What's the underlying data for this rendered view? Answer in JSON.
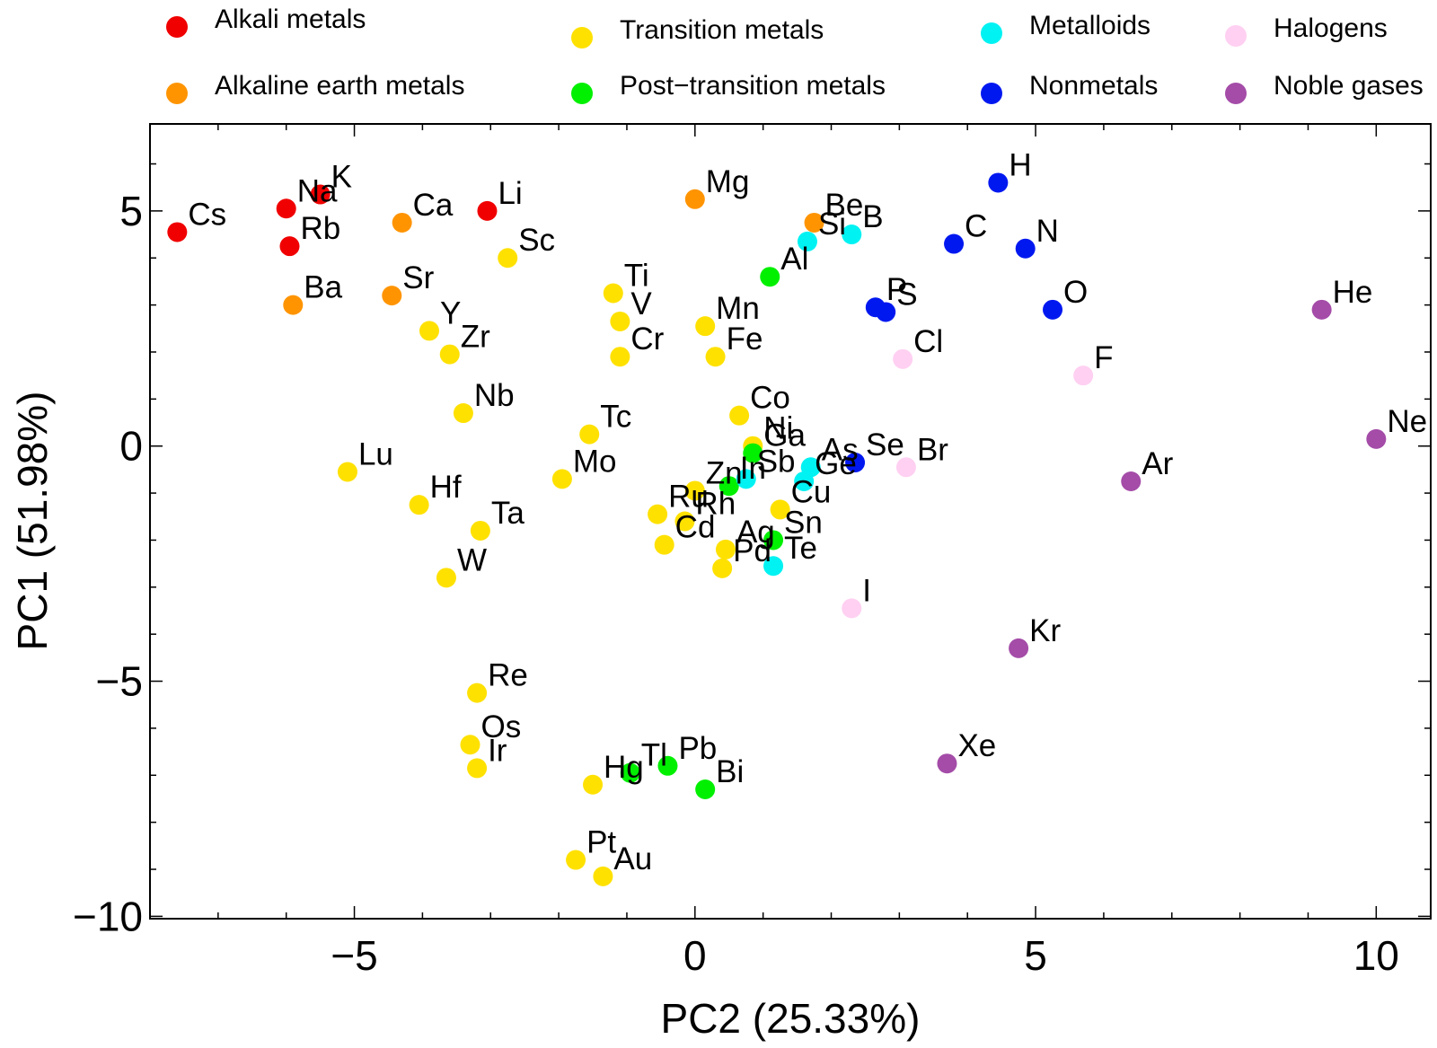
{
  "chart_data": {
    "type": "scatter",
    "xlabel": "PC2 (25.33%)",
    "ylabel": "PC1 (51.98%)",
    "xlim": [
      -8,
      10.8
    ],
    "ylim": [
      -10.05,
      6.85
    ],
    "xticks": [
      -5,
      0,
      5,
      10
    ],
    "yticks": [
      -10,
      -5,
      0,
      5
    ],
    "xtick_labels": [
      "−5",
      "0",
      "5",
      "10"
    ],
    "ytick_labels": [
      "−10",
      "−5",
      "0",
      "5"
    ],
    "grid": false,
    "legend_position": "top",
    "series": [
      {
        "name": "Alkali metals",
        "color": "#f00000",
        "points": [
          {
            "label": "Cs",
            "x": -7.6,
            "y": 4.55
          },
          {
            "label": "Na",
            "x": -6.0,
            "y": 5.05
          },
          {
            "label": "K",
            "x": -5.5,
            "y": 5.35
          },
          {
            "label": "Rb",
            "x": -5.95,
            "y": 4.25
          },
          {
            "label": "Li",
            "x": -3.05,
            "y": 5.0
          }
        ]
      },
      {
        "name": "Alkaline earth metals",
        "color": "#ff9400",
        "points": [
          {
            "label": "Ca",
            "x": -4.3,
            "y": 4.75
          },
          {
            "label": "Ba",
            "x": -5.9,
            "y": 3.0
          },
          {
            "label": "Sr",
            "x": -4.45,
            "y": 3.2
          },
          {
            "label": "Mg",
            "x": 0.0,
            "y": 5.25
          },
          {
            "label": "Be",
            "x": 1.75,
            "y": 4.75
          }
        ]
      },
      {
        "name": "Transition metals",
        "color": "#ffe100",
        "points": [
          {
            "label": "Sc",
            "x": -2.75,
            "y": 4.0
          },
          {
            "label": "Ti",
            "x": -1.2,
            "y": 3.25
          },
          {
            "label": "V",
            "x": -1.1,
            "y": 2.65
          },
          {
            "label": "Cr",
            "x": -1.1,
            "y": 1.9
          },
          {
            "label": "Mn",
            "x": 0.15,
            "y": 2.55
          },
          {
            "label": "Fe",
            "x": 0.3,
            "y": 1.9
          },
          {
            "label": "Co",
            "x": 0.65,
            "y": 0.65
          },
          {
            "label": "Ni",
            "x": 0.85,
            "y": 0.0
          },
          {
            "label": "Cu",
            "x": 1.25,
            "y": -1.35
          },
          {
            "label": "Zn",
            "x": 0.0,
            "y": -0.95
          },
          {
            "label": "Y",
            "x": -3.9,
            "y": 2.45
          },
          {
            "label": "Zr",
            "x": -3.6,
            "y": 1.95
          },
          {
            "label": "Nb",
            "x": -3.4,
            "y": 0.7
          },
          {
            "label": "Mo",
            "x": -1.95,
            "y": -0.7
          },
          {
            "label": "Tc",
            "x": -1.55,
            "y": 0.25
          },
          {
            "label": "Ru",
            "x": -0.55,
            "y": -1.45
          },
          {
            "label": "Rh",
            "x": -0.15,
            "y": -1.6
          },
          {
            "label": "Pd",
            "x": 0.4,
            "y": -2.6
          },
          {
            "label": "Ag",
            "x": 0.45,
            "y": -2.2
          },
          {
            "label": "Cd",
            "x": -0.45,
            "y": -2.1
          },
          {
            "label": "Lu",
            "x": -5.1,
            "y": -0.55
          },
          {
            "label": "Hf",
            "x": -4.05,
            "y": -1.25
          },
          {
            "label": "Ta",
            "x": -3.15,
            "y": -1.8
          },
          {
            "label": "W",
            "x": -3.65,
            "y": -2.8
          },
          {
            "label": "Re",
            "x": -3.2,
            "y": -5.25
          },
          {
            "label": "Os",
            "x": -3.3,
            "y": -6.35
          },
          {
            "label": "Ir",
            "x": -3.2,
            "y": -6.85
          },
          {
            "label": "Pt",
            "x": -1.75,
            "y": -8.8
          },
          {
            "label": "Au",
            "x": -1.35,
            "y": -9.15
          },
          {
            "label": "Hg",
            "x": -1.5,
            "y": -7.2
          }
        ]
      },
      {
        "name": "Post−transition metals",
        "color": "#00f000",
        "points": [
          {
            "label": "Al",
            "x": 1.1,
            "y": 3.6
          },
          {
            "label": "Ga",
            "x": 0.85,
            "y": -0.15
          },
          {
            "label": "In",
            "x": 0.5,
            "y": -0.85
          },
          {
            "label": "Sn",
            "x": 1.15,
            "y": -2.0
          },
          {
            "label": "Tl",
            "x": -0.95,
            "y": -6.95
          },
          {
            "label": "Pb",
            "x": -0.4,
            "y": -6.8
          },
          {
            "label": "Bi",
            "x": 0.15,
            "y": -7.3
          }
        ]
      },
      {
        "name": "Metalloids",
        "color": "#00f2f2",
        "points": [
          {
            "label": "B",
            "x": 2.3,
            "y": 4.5
          },
          {
            "label": "Si",
            "x": 1.65,
            "y": 4.35
          },
          {
            "label": "As",
            "x": 1.7,
            "y": -0.45
          },
          {
            "label": "Ge",
            "x": 1.6,
            "y": -0.75
          },
          {
            "label": "Sb",
            "x": 0.75,
            "y": -0.7
          },
          {
            "label": "Te",
            "x": 1.15,
            "y": -2.55
          }
        ]
      },
      {
        "name": "Nonmetals",
        "color": "#0018f0",
        "points": [
          {
            "label": "H",
            "x": 4.45,
            "y": 5.6
          },
          {
            "label": "C",
            "x": 3.8,
            "y": 4.3
          },
          {
            "label": "N",
            "x": 4.85,
            "y": 4.2
          },
          {
            "label": "O",
            "x": 5.25,
            "y": 2.9
          },
          {
            "label": "P",
            "x": 2.65,
            "y": 2.95
          },
          {
            "label": "S",
            "x": 2.8,
            "y": 2.85
          },
          {
            "label": "Se",
            "x": 2.35,
            "y": -0.35
          }
        ]
      },
      {
        "name": "Halogens",
        "color": "#ffd0f2",
        "points": [
          {
            "label": "F",
            "x": 5.7,
            "y": 1.5
          },
          {
            "label": "Cl",
            "x": 3.05,
            "y": 1.85
          },
          {
            "label": "Br",
            "x": 3.1,
            "y": -0.45
          },
          {
            "label": "I",
            "x": 2.3,
            "y": -3.45
          }
        ]
      },
      {
        "name": "Noble gases",
        "color": "#a44ca8",
        "points": [
          {
            "label": "He",
            "x": 9.2,
            "y": 2.9
          },
          {
            "label": "Ne",
            "x": 10.0,
            "y": 0.15
          },
          {
            "label": "Ar",
            "x": 6.4,
            "y": -0.75
          },
          {
            "label": "Kr",
            "x": 4.75,
            "y": -4.3
          },
          {
            "label": "Xe",
            "x": 3.7,
            "y": -6.75
          }
        ]
      }
    ]
  }
}
